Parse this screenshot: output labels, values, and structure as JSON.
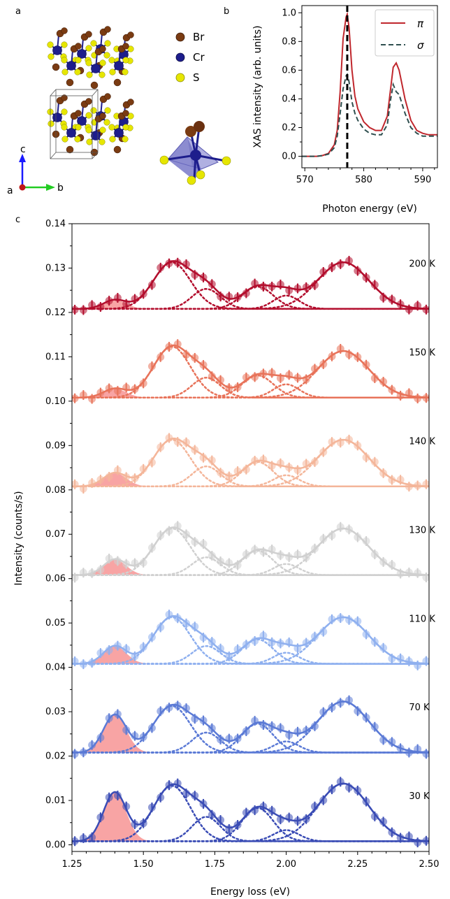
{
  "panels": {
    "a": "a",
    "b": "b",
    "c": "c"
  },
  "structure": {
    "legend": [
      {
        "label": "Br",
        "color": "#7a3b12"
      },
      {
        "label": "Cr",
        "color": "#1d1d8c"
      },
      {
        "label": "S",
        "color": "#e6e600"
      }
    ],
    "axes": {
      "a": "a",
      "b": "b",
      "c": "c"
    }
  },
  "chart_data": [
    {
      "type": "line",
      "panel": "b",
      "xlabel": "Photon energy (eV)",
      "ylabel": "XAS intensity (arb. units)",
      "xlim": [
        569.5,
        592.5
      ],
      "ylim": [
        -0.08,
        1.05
      ],
      "xticks": [
        570,
        580,
        590
      ],
      "yticks": [
        0.0,
        0.2,
        0.4,
        0.6,
        0.8,
        1.0
      ],
      "vline": 577.2,
      "legend_position": "top-right",
      "x": [
        569.5,
        570,
        571,
        572,
        573,
        574,
        575,
        575.5,
        576,
        576.5,
        577,
        577.2,
        577.5,
        578,
        578.5,
        579,
        580,
        581,
        582,
        583,
        584,
        584.5,
        585,
        585.5,
        586,
        587,
        588,
        589,
        590,
        591,
        592.5
      ],
      "series": [
        {
          "name": "π",
          "color": "#c0272d",
          "dash": "solid",
          "values": [
            0.0,
            0.0,
            0.0,
            0.0,
            0.005,
            0.02,
            0.08,
            0.18,
            0.45,
            0.82,
            0.97,
            0.99,
            0.9,
            0.6,
            0.42,
            0.33,
            0.24,
            0.2,
            0.18,
            0.18,
            0.28,
            0.45,
            0.62,
            0.65,
            0.6,
            0.4,
            0.25,
            0.18,
            0.16,
            0.15,
            0.15
          ]
        },
        {
          "name": "σ",
          "color": "#2f4f4f",
          "dash": "dashed",
          "values": [
            0.0,
            0.0,
            0.0,
            0.0,
            0.005,
            0.015,
            0.06,
            0.14,
            0.3,
            0.47,
            0.56,
            0.57,
            0.52,
            0.38,
            0.3,
            0.25,
            0.19,
            0.16,
            0.15,
            0.15,
            0.22,
            0.38,
            0.5,
            0.45,
            0.43,
            0.3,
            0.2,
            0.16,
            0.14,
            0.14,
            0.14
          ]
        }
      ]
    },
    {
      "type": "line",
      "panel": "c",
      "xlabel": "Energy loss (eV)",
      "ylabel": "Intensity (counts/s)",
      "xlim": [
        1.25,
        2.5
      ],
      "ylim": [
        -0.0015,
        0.14
      ],
      "xticks": [
        "1.25",
        "1.50",
        "1.75",
        "2.00",
        "2.25",
        "2.50"
      ],
      "yticks": [
        "0.00",
        "0.01",
        "0.02",
        "0.03",
        "0.04",
        "0.05",
        "0.06",
        "0.07",
        "0.08",
        "0.09",
        "0.10",
        "0.11",
        "0.12",
        "0.13",
        "0.14"
      ],
      "peak_centers": [
        1.4,
        1.6,
        1.72,
        1.9,
        2.0,
        2.2
      ],
      "peak_widths": [
        0.04,
        0.065,
        0.05,
        0.055,
        0.045,
        0.09
      ],
      "series": [
        {
          "name": "30 K",
          "offset": 0.0,
          "color": "#3a4cb5",
          "peaks": [
            0.011,
            0.0125,
            0.0055,
            0.0075,
            0.0025,
            0.013
          ]
        },
        {
          "name": "70 K",
          "offset": 0.02,
          "color": "#5b7ad6",
          "peaks": [
            0.0085,
            0.0105,
            0.0045,
            0.0065,
            0.0025,
            0.0115
          ]
        },
        {
          "name": "110 K",
          "offset": 0.04,
          "color": "#8fb0ef",
          "peaks": [
            0.004,
            0.0105,
            0.004,
            0.0055,
            0.0025,
            0.0105
          ]
        },
        {
          "name": "130 K",
          "offset": 0.06,
          "color": "#d0d0d0",
          "peaks": [
            0.0035,
            0.0105,
            0.004,
            0.0055,
            0.0025,
            0.0105
          ]
        },
        {
          "name": "140 K",
          "offset": 0.08,
          "color": "#f4b69a",
          "peaks": [
            0.003,
            0.0105,
            0.0045,
            0.0055,
            0.0025,
            0.0105
          ]
        },
        {
          "name": "150 K",
          "offset": 0.1,
          "color": "#e8735a",
          "peaks": [
            0.002,
            0.0115,
            0.0045,
            0.005,
            0.003,
            0.0105
          ]
        },
        {
          "name": "200 K",
          "offset": 0.12,
          "color": "#b30f2e",
          "peaks": [
            0.002,
            0.0105,
            0.0045,
            0.005,
            0.003,
            0.0105
          ]
        }
      ],
      "fill_color": "#f79a9a"
    }
  ]
}
